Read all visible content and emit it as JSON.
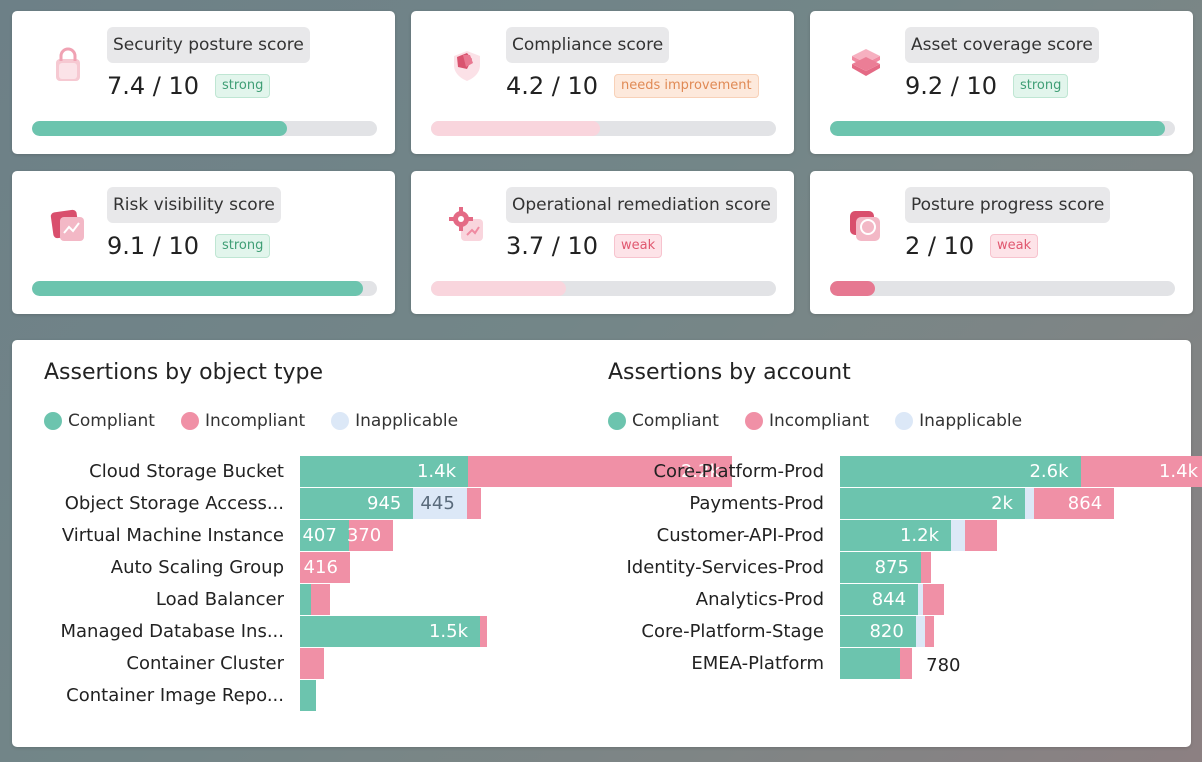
{
  "colors": {
    "compliant": "#6cc4ae",
    "incompliant": "#f090a6",
    "inapplicable": "#dce8f7",
    "weak_fill": "#e67891",
    "improve_fill": "#f9d5dd"
  },
  "score_cards": [
    {
      "label": "Security posture score",
      "value": "7.4 / 10",
      "badge": "strong",
      "badge_type": "strong",
      "icon": "lock-icon",
      "progress": 0.74
    },
    {
      "label": "Compliance score",
      "value": "4.2 / 10",
      "badge": "needs improvement",
      "badge_type": "improve",
      "icon": "shield-icon",
      "progress": 0.49
    },
    {
      "label": "Asset coverage score",
      "value": "9.2 / 10",
      "badge": "strong",
      "badge_type": "strong",
      "icon": "layers-icon",
      "progress": 0.97
    },
    {
      "label": "Risk visibility score",
      "value": "9.1 / 10",
      "badge": "strong",
      "badge_type": "strong",
      "icon": "chart-card-icon",
      "progress": 0.96
    },
    {
      "label": "Operational remediation score",
      "value": "3.7 / 10",
      "badge": "weak",
      "badge_type": "weak",
      "icon": "gear-icon",
      "progress": 0.39
    },
    {
      "label": "Posture progress score",
      "value": "2 / 10",
      "badge": "weak",
      "badge_type": "weak",
      "icon": "progress-icon",
      "progress": 0.13
    }
  ],
  "object_type_chart": {
    "title": "Assertions by object type",
    "legend": [
      "Compliant",
      "Incompliant",
      "Inapplicable"
    ],
    "rows": [
      {
        "label": "Cloud Storage Bucket",
        "compliant": 1400,
        "inapplicable": 0,
        "incompliant": 2200,
        "labels": [
          "1.4k",
          "",
          "2.2k"
        ]
      },
      {
        "label": "Object Storage Access...",
        "compliant": 945,
        "inapplicable": 445,
        "incompliant": 120,
        "labels": [
          "945",
          "445",
          ""
        ]
      },
      {
        "label": "Virtual Machine Instance",
        "compliant": 407,
        "inapplicable": 0,
        "incompliant": 370,
        "labels": [
          "407",
          "",
          "370"
        ]
      },
      {
        "label": "Auto Scaling Group",
        "compliant": 0,
        "inapplicable": 0,
        "incompliant": 416,
        "labels": [
          "",
          "",
          "416"
        ]
      },
      {
        "label": "Load Balancer",
        "compliant": 90,
        "inapplicable": 0,
        "incompliant": 160,
        "labels": [
          "",
          "",
          ""
        ]
      },
      {
        "label": "Managed Database Ins...",
        "compliant": 1500,
        "inapplicable": 0,
        "incompliant": 60,
        "labels": [
          "1.5k",
          "",
          ""
        ]
      },
      {
        "label": "Container Cluster",
        "compliant": 0,
        "inapplicable": 0,
        "incompliant": 200,
        "labels": [
          "",
          "",
          ""
        ]
      },
      {
        "label": "Container Image Repo...",
        "compliant": 130,
        "inapplicable": 0,
        "incompliant": 0,
        "labels": [
          "",
          "",
          ""
        ]
      }
    ]
  },
  "account_chart": {
    "title": "Assertions by account",
    "legend": [
      "Compliant",
      "Incompliant",
      "Inapplicable"
    ],
    "rows": [
      {
        "label": "Core-Platform-Prod",
        "compliant": 2600,
        "inapplicable": 0,
        "incompliant": 1400,
        "labels": [
          "2.6k",
          "",
          "1.4k"
        ]
      },
      {
        "label": "Payments-Prod",
        "compliant": 2000,
        "inapplicable": 100,
        "incompliant": 864,
        "labels": [
          "2k",
          "",
          "864"
        ]
      },
      {
        "label": "Customer-API-Prod",
        "compliant": 1200,
        "inapplicable": 150,
        "incompliant": 350,
        "labels": [
          "1.2k",
          "",
          ""
        ]
      },
      {
        "label": "Identity-Services-Prod",
        "compliant": 875,
        "inapplicable": 0,
        "incompliant": 110,
        "labels": [
          "875",
          "",
          ""
        ]
      },
      {
        "label": "Analytics-Prod",
        "compliant": 844,
        "inapplicable": 50,
        "incompliant": 230,
        "labels": [
          "844",
          "",
          ""
        ]
      },
      {
        "label": "Core-Platform-Stage",
        "compliant": 820,
        "inapplicable": 100,
        "incompliant": 100,
        "labels": [
          "820",
          "",
          ""
        ]
      },
      {
        "label": "EMEA-Platform",
        "compliant": 650,
        "inapplicable": 0,
        "incompliant": 130,
        "labels": [
          "",
          "",
          ""
        ],
        "outside_label": "780"
      }
    ]
  }
}
